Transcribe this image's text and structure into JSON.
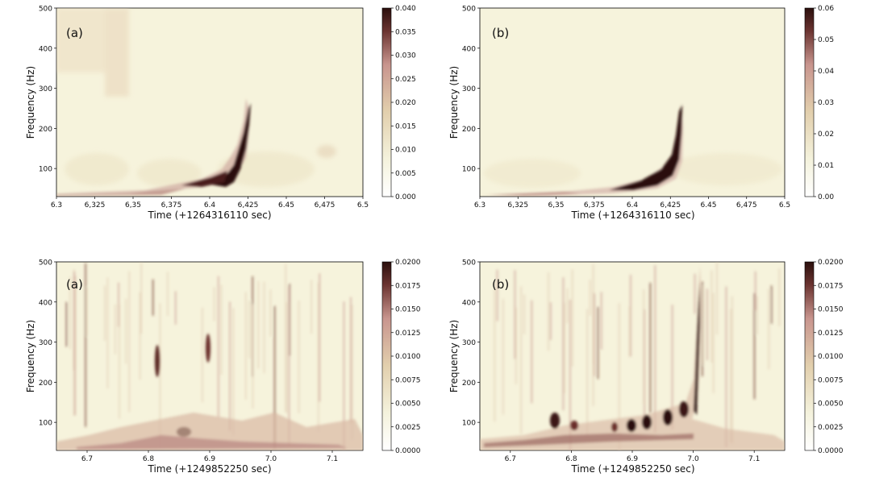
{
  "chart_data": [
    {
      "type": "heatmap",
      "panel_label": "(a)",
      "xlabel": "Time (+1264316110 sec)",
      "ylabel": "Frequency (Hz)",
      "xlim": [
        6.3,
        6.5
      ],
      "ylim": [
        30,
        500
      ],
      "x_ticks": [
        "6.3",
        "6,325",
        "6,35",
        "6,375",
        "6.4",
        "6,425",
        "6.45",
        "6,475",
        "6.5"
      ],
      "y_ticks": [
        100,
        200,
        300,
        400,
        500
      ],
      "colorbar": {
        "range": [
          0,
          0.04
        ],
        "ticks": [
          "0.000",
          "0.005",
          "0.010",
          "0.015",
          "0.020",
          "0.025",
          "0.030",
          "0.035",
          "0.040"
        ]
      },
      "colors": [
        "#ffffff",
        "#f2f0d6",
        "#dfc8a8",
        "#c4908a",
        "#2b0f0d"
      ]
    },
    {
      "type": "heatmap",
      "panel_label": "(b)",
      "xlabel": "Time (+1264316110 sec)",
      "ylabel": "Frequency (Hz)",
      "xlim": [
        6.3,
        6.5
      ],
      "ylim": [
        30,
        500
      ],
      "x_ticks": [
        "6.3",
        "6,325",
        "6,35",
        "6,375",
        "6.4",
        "6,425",
        "6.45",
        "6,475",
        "6.5"
      ],
      "y_ticks": [
        100,
        200,
        300,
        400,
        500
      ],
      "colorbar": {
        "range": [
          0,
          0.06
        ],
        "ticks": [
          "0.00",
          "0.01",
          "0.02",
          "0.03",
          "0.04",
          "0.05",
          "0.06"
        ]
      },
      "colors": [
        "#ffffff",
        "#f2f0d6",
        "#dfc8a8",
        "#c4908a",
        "#2b0f0d"
      ]
    },
    {
      "type": "heatmap",
      "panel_label": "(a)",
      "xlabel": "Time (+1249852250 sec)",
      "ylabel": "Frequency (Hz)",
      "xlim": [
        6.65,
        7.15
      ],
      "ylim": [
        30,
        500
      ],
      "x_ticks": [
        "6.7",
        "6.8",
        "6.9",
        "7.0",
        "7.1"
      ],
      "y_ticks": [
        100,
        200,
        300,
        400,
        500
      ],
      "colorbar": {
        "range": [
          0,
          0.02
        ],
        "ticks": [
          "0.0000",
          "0.0025",
          "0.0050",
          "0.0075",
          "0.0100",
          "0.0125",
          "0.0150",
          "0.0175",
          "0.0200"
        ]
      },
      "colors": [
        "#ffffff",
        "#f2f0d6",
        "#dfc8a8",
        "#c4908a",
        "#2b0f0d"
      ]
    },
    {
      "type": "heatmap",
      "panel_label": "(b)",
      "xlabel": "Time (+1249852250 sec)",
      "ylabel": "Frequency (Hz)",
      "xlim": [
        6.65,
        7.15
      ],
      "ylim": [
        30,
        500
      ],
      "x_ticks": [
        "6.7",
        "6.8",
        "6.9",
        "7.0",
        "7.1"
      ],
      "y_ticks": [
        100,
        200,
        300,
        400,
        500
      ],
      "colorbar": {
        "range": [
          0,
          0.02
        ],
        "ticks": [
          "0.0000",
          "0.0025",
          "0.0050",
          "0.0075",
          "0.0100",
          "0.0125",
          "0.0150",
          "0.0175",
          "0.0200"
        ]
      },
      "colors": [
        "#ffffff",
        "#f2f0d6",
        "#dfc8a8",
        "#c4908a",
        "#2b0f0d"
      ]
    }
  ]
}
